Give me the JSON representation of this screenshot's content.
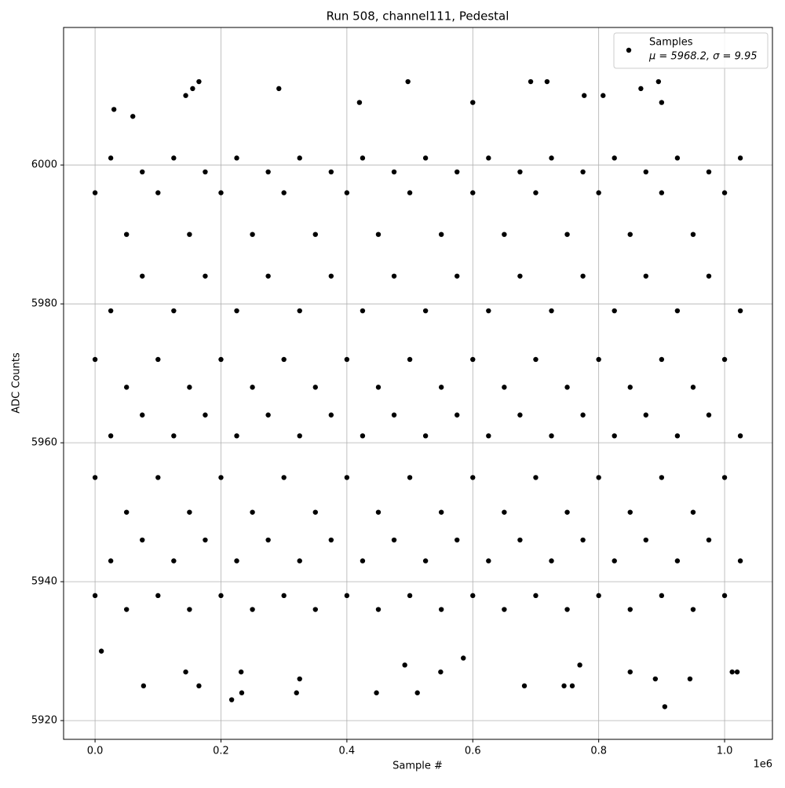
{
  "chart_data": {
    "type": "scatter",
    "title": "Run 508, channel111, Pedestal",
    "x_label": "Sample #",
    "y_label": "ADC Counts",
    "x_offset_label": "1e6",
    "stats_label": "μ = 5968.2, σ = 9.95",
    "xlim": [
      -50000,
      1076000
    ],
    "ylim": [
      5917.3,
      6019.8
    ],
    "xticks": [
      {
        "value": 0,
        "label": "0.0"
      },
      {
        "value": 200000,
        "label": "0.2"
      },
      {
        "value": 400000,
        "label": "0.4"
      },
      {
        "value": 600000,
        "label": "0.6"
      },
      {
        "value": 800000,
        "label": "0.8"
      },
      {
        "value": 1000000,
        "label": "1.0"
      }
    ],
    "yticks": [
      5920,
      5940,
      5960,
      5980,
      6000
    ],
    "grid": true,
    "legend": "upper right",
    "series": [
      {
        "name": "Samples",
        "color": "#000000",
        "x": [
          0,
          0,
          0,
          0,
          25000,
          25000,
          25000,
          25000,
          50000,
          50000,
          50000,
          50000,
          75000,
          75000,
          75000,
          75000,
          100000,
          100000,
          100000,
          100000,
          125000,
          125000,
          125000,
          125000,
          150000,
          150000,
          150000,
          150000,
          175000,
          175000,
          175000,
          175000,
          200000,
          200000,
          200000,
          200000,
          225000,
          225000,
          225000,
          225000,
          250000,
          250000,
          250000,
          250000,
          275000,
          275000,
          275000,
          275000,
          300000,
          300000,
          300000,
          300000,
          325000,
          325000,
          325000,
          325000,
          350000,
          350000,
          350000,
          350000,
          375000,
          375000,
          375000,
          375000,
          400000,
          400000,
          400000,
          400000,
          425000,
          425000,
          425000,
          425000,
          450000,
          450000,
          450000,
          450000,
          475000,
          475000,
          475000,
          475000,
          500000,
          500000,
          500000,
          500000,
          525000,
          525000,
          525000,
          525000,
          550000,
          550000,
          550000,
          550000,
          575000,
          575000,
          575000,
          575000,
          600000,
          600000,
          600000,
          600000,
          625000,
          625000,
          625000,
          625000,
          650000,
          650000,
          650000,
          650000,
          675000,
          675000,
          675000,
          675000,
          700000,
          700000,
          700000,
          700000,
          725000,
          725000,
          725000,
          725000,
          750000,
          750000,
          750000,
          750000,
          775000,
          775000,
          775000,
          775000,
          800000,
          800000,
          800000,
          800000,
          825000,
          825000,
          825000,
          825000,
          850000,
          850000,
          850000,
          850000,
          875000,
          875000,
          875000,
          875000,
          900000,
          900000,
          900000,
          900000,
          925000,
          925000,
          925000,
          925000,
          950000,
          950000,
          950000,
          950000,
          975000,
          975000,
          975000,
          975000,
          1000000,
          1000000,
          1000000,
          1000000,
          1025000,
          1025000,
          1025000,
          1025000,
          165000,
          155000,
          292000,
          497000,
          692000,
          718000,
          895000,
          867000,
          807000,
          777000,
          144000,
          30000,
          60000,
          420000,
          600000,
          900000,
          77000,
          165000,
          217000,
          233000,
          320000,
          447000,
          512000,
          682000,
          745000,
          758000,
          905000,
          890000,
          945000,
          1012000,
          1020000,
          144000,
          232000,
          325000,
          549000,
          492000,
          850000,
          770000,
          10000,
          585000
        ],
        "values": [
          5938,
          5955,
          5972,
          5996,
          5943,
          5961,
          5979,
          6001,
          5936,
          5950,
          5968,
          5990,
          5946,
          5964,
          5984,
          5999,
          5938,
          5955,
          5972,
          5996,
          5943,
          5961,
          5979,
          6001,
          5936,
          5950,
          5968,
          5990,
          5946,
          5964,
          5984,
          5999,
          5938,
          5955,
          5972,
          5996,
          5943,
          5961,
          5979,
          6001,
          5936,
          5950,
          5968,
          5990,
          5946,
          5964,
          5984,
          5999,
          5938,
          5955,
          5972,
          5996,
          5943,
          5961,
          5979,
          6001,
          5936,
          5950,
          5968,
          5990,
          5946,
          5964,
          5984,
          5999,
          5938,
          5955,
          5972,
          5996,
          5943,
          5961,
          5979,
          6001,
          5936,
          5950,
          5968,
          5990,
          5946,
          5964,
          5984,
          5999,
          5938,
          5955,
          5972,
          5996,
          5943,
          5961,
          5979,
          6001,
          5936,
          5950,
          5968,
          5990,
          5946,
          5964,
          5984,
          5999,
          5938,
          5955,
          5972,
          5996,
          5943,
          5961,
          5979,
          6001,
          5936,
          5950,
          5968,
          5990,
          5946,
          5964,
          5984,
          5999,
          5938,
          5955,
          5972,
          5996,
          5943,
          5961,
          5979,
          6001,
          5936,
          5950,
          5968,
          5990,
          5946,
          5964,
          5984,
          5999,
          5938,
          5955,
          5972,
          5996,
          5943,
          5961,
          5979,
          6001,
          5936,
          5950,
          5968,
          5990,
          5946,
          5964,
          5984,
          5999,
          5938,
          5955,
          5972,
          5996,
          5943,
          5961,
          5979,
          6001,
          5936,
          5950,
          5968,
          5990,
          5946,
          5964,
          5984,
          5999,
          5938,
          5955,
          5972,
          5996,
          5943,
          5961,
          5979,
          6001,
          6012,
          6011,
          6011,
          6012,
          6012,
          6012,
          6012,
          6011,
          6010,
          6010,
          6010,
          6008,
          6007,
          6009,
          6009,
          6009,
          5925,
          5925,
          5923,
          5924,
          5924,
          5924,
          5924,
          5925,
          5925,
          5925,
          5922,
          5926,
          5926,
          5927,
          5927,
          5927,
          5927,
          5926,
          5927,
          5928,
          5927,
          5928,
          5930,
          5929
        ]
      }
    ]
  }
}
